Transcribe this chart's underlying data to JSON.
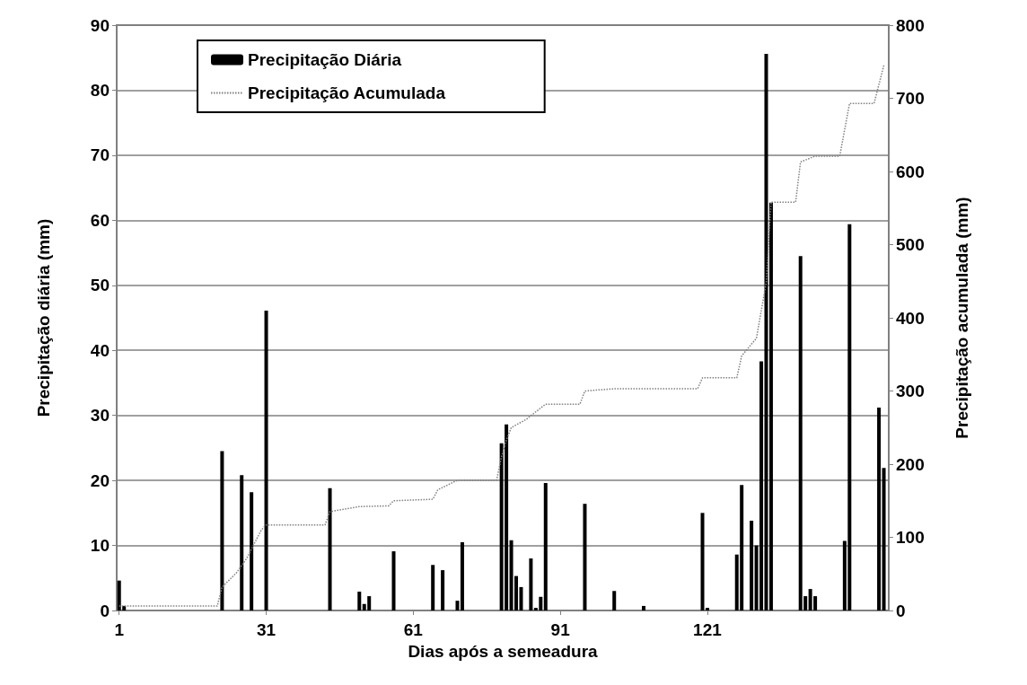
{
  "chart_data": {
    "type": "bar",
    "xlabel": "Dias após a semeadura",
    "ylabel": "Precipitação diária (mm)",
    "y2label": "Precipitação acumulada (mm)",
    "x": [
      1,
      2,
      22,
      26,
      28,
      31,
      44,
      50,
      51,
      52,
      57,
      65,
      67,
      70,
      71,
      79,
      80,
      81,
      82,
      83,
      85,
      86,
      87,
      88,
      96,
      102,
      108,
      120,
      121,
      127,
      128,
      130,
      131,
      132,
      133,
      134,
      140,
      141,
      142,
      143,
      149,
      150,
      156,
      157
    ],
    "series": [
      {
        "name": "Precipitação Diária",
        "color": "#000000",
        "values": [
          4.6,
          0.7,
          24.5,
          20.8,
          18.2,
          46.1,
          18.8,
          2.9,
          1.0,
          2.2,
          9.1,
          7.0,
          6.2,
          1.5,
          10.5,
          25.7,
          28.6,
          10.8,
          5.3,
          3.6,
          8.0,
          0.4,
          2.1,
          19.6,
          16.4,
          3.0,
          0.7,
          15.0,
          0.4,
          8.6,
          19.3,
          13.8,
          10.0,
          38.3,
          85.6,
          62.7,
          54.5,
          2.2,
          3.3,
          2.2,
          10.7,
          59.4,
          31.2,
          21.9
        ]
      },
      {
        "name": "Precipitação Acumulada",
        "type": "line",
        "axis": "y2",
        "color": "#808080",
        "line_style": "dotted",
        "x": [
          1,
          21,
          22,
          25,
          27,
          30,
          31,
          43,
          44,
          50,
          56,
          57,
          65,
          66,
          70,
          78,
          79,
          80,
          81,
          84,
          88,
          95,
          96,
          102,
          119,
          120,
          127,
          128,
          131,
          133,
          134,
          139,
          140,
          143,
          148,
          150,
          155,
          157
        ],
        "values": [
          6,
          6,
          32,
          52,
          71,
          110,
          117,
          117,
          135,
          142,
          143,
          150,
          152,
          165,
          178,
          178,
          210,
          233,
          250,
          261,
          282,
          282,
          300,
          303,
          303,
          318,
          318,
          348,
          372,
          448,
          558,
          558,
          613,
          621,
          621,
          693,
          693,
          745
        ]
      }
    ],
    "xlim": [
      0.5,
      158
    ],
    "xticks": [
      1,
      31,
      61,
      91,
      121
    ],
    "ylim": [
      0,
      90
    ],
    "yticks": [
      0,
      10,
      20,
      30,
      40,
      50,
      60,
      70,
      80,
      90
    ],
    "y2lim": [
      0,
      800
    ],
    "y2ticks": [
      0,
      100,
      200,
      300,
      400,
      500,
      600,
      700,
      800
    ],
    "grid": "y",
    "legend": "top left"
  }
}
